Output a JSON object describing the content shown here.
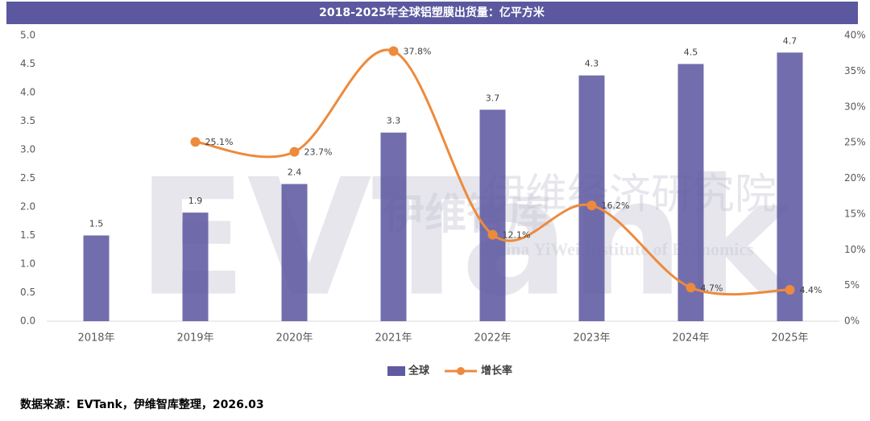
{
  "chart_data": {
    "type": "bar",
    "title": "2018-2025年全球铝塑膜出货量：亿平方米",
    "categories": [
      "2018年",
      "2019年",
      "2020年",
      "2021年",
      "2022年",
      "2023年",
      "2024年",
      "2025年"
    ],
    "series": [
      {
        "name": "全球",
        "type": "bar",
        "color": "#5f5aa2",
        "values": [
          1.5,
          1.9,
          2.4,
          3.3,
          3.7,
          4.3,
          4.5,
          4.7
        ]
      },
      {
        "name": "增长率",
        "type": "line",
        "axis": "y2",
        "color": "#ed8a3c",
        "smooth": true,
        "values": [
          null,
          25.1,
          23.7,
          37.8,
          12.1,
          16.2,
          4.7,
          4.4
        ],
        "value_labels": [
          null,
          "25.1%",
          "23.7%",
          "37.8%",
          "12.1%",
          "16.2%",
          "4.7%",
          "4.4%"
        ]
      }
    ],
    "ylim": [
      0,
      5
    ],
    "yticks": [
      {
        "value": 0,
        "label": "0.0"
      },
      {
        "value": 0.5,
        "label": "0.5"
      },
      {
        "value": 1,
        "label": "1.0"
      },
      {
        "value": 1.5,
        "label": "1.5"
      },
      {
        "value": 2,
        "label": "2.0"
      },
      {
        "value": 2.5,
        "label": "2.5"
      },
      {
        "value": 3,
        "label": "3.0"
      },
      {
        "value": 3.5,
        "label": "3.5"
      },
      {
        "value": 4,
        "label": "4.0"
      },
      {
        "value": 4.5,
        "label": "4.5"
      },
      {
        "value": 5,
        "label": "5.0"
      }
    ],
    "y2lim": [
      0,
      40
    ],
    "y2ticks": [
      {
        "value": 0,
        "label": "0%"
      },
      {
        "value": 5,
        "label": "5%"
      },
      {
        "value": 10,
        "label": "10%"
      },
      {
        "value": 15,
        "label": "15%"
      },
      {
        "value": 20,
        "label": "20%"
      },
      {
        "value": 25,
        "label": "25%"
      },
      {
        "value": 30,
        "label": "30%"
      },
      {
        "value": 35,
        "label": "35%"
      },
      {
        "value": 40,
        "label": "40%"
      }
    ],
    "watermark": [
      "EVTank",
      "伊维智库",
      "伊维经济研究院",
      "China YiWei Institute of Economics"
    ],
    "source": "数据来源：EVTank，伊维智库整理，2026.03"
  }
}
